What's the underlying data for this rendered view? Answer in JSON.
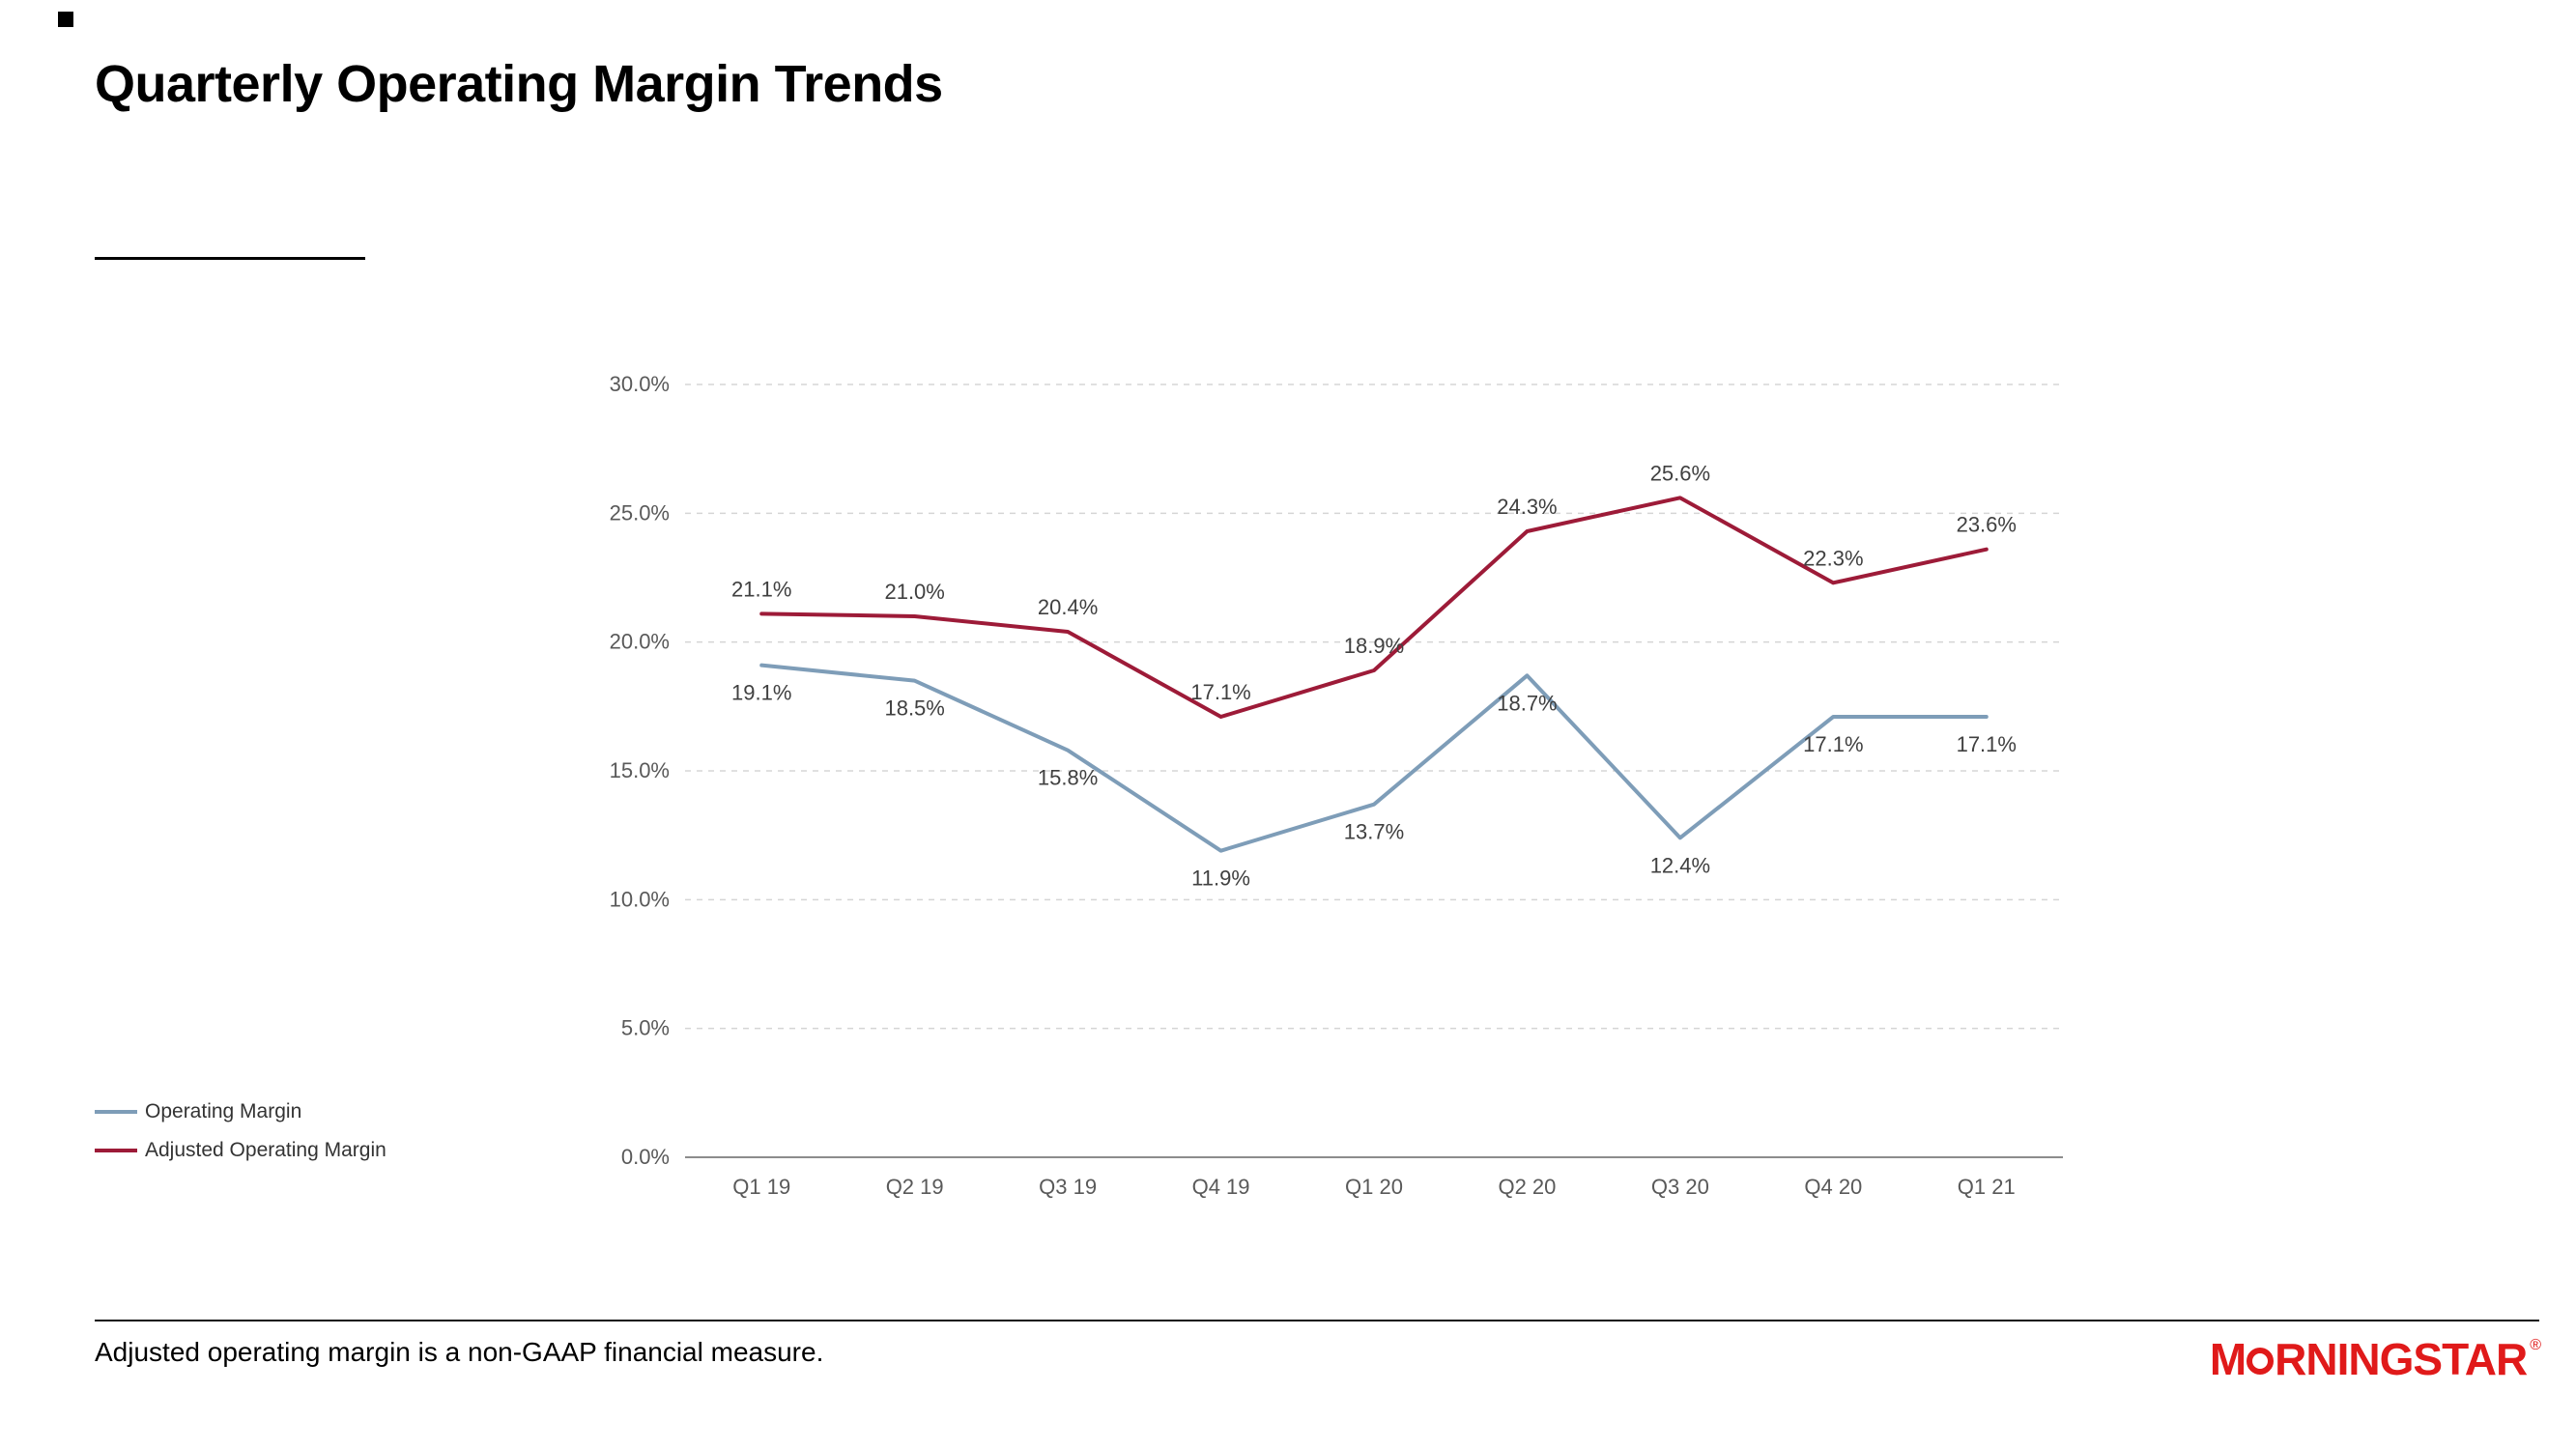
{
  "page": {
    "title": "Quarterly Operating Margin Trends",
    "footnote": "Adjusted operating margin is a non-GAAP financial measure.",
    "logo": {
      "pre": "M",
      "post": "RNINGSTAR",
      "registered": "®"
    }
  },
  "chart_data": {
    "type": "line",
    "title": "Quarterly Operating Margin Trends",
    "categories": [
      "Q1 19",
      "Q2 19",
      "Q3 19",
      "Q4 19",
      "Q1 20",
      "Q2 20",
      "Q3 20",
      "Q4 20",
      "Q1 21"
    ],
    "series": [
      {
        "name": "Operating Margin",
        "color": "#7e9db8",
        "values": [
          19.1,
          18.5,
          15.8,
          11.9,
          13.7,
          18.7,
          12.4,
          17.1,
          17.1
        ],
        "label_position": "below"
      },
      {
        "name": "Adjusted Operating Margin",
        "color": "#9d1b38",
        "values": [
          21.1,
          21.0,
          20.4,
          17.1,
          18.9,
          24.3,
          25.6,
          22.3,
          23.6
        ],
        "label_position": "above"
      }
    ],
    "ylim": [
      0,
      30
    ],
    "ytick_step": 5,
    "ytick_labels": [
      "0.0%",
      "5.0%",
      "10.0%",
      "15.0%",
      "20.0%",
      "25.0%",
      "30.0%"
    ],
    "grid": "horizontal-dashed",
    "legend_position": "bottom-left"
  }
}
